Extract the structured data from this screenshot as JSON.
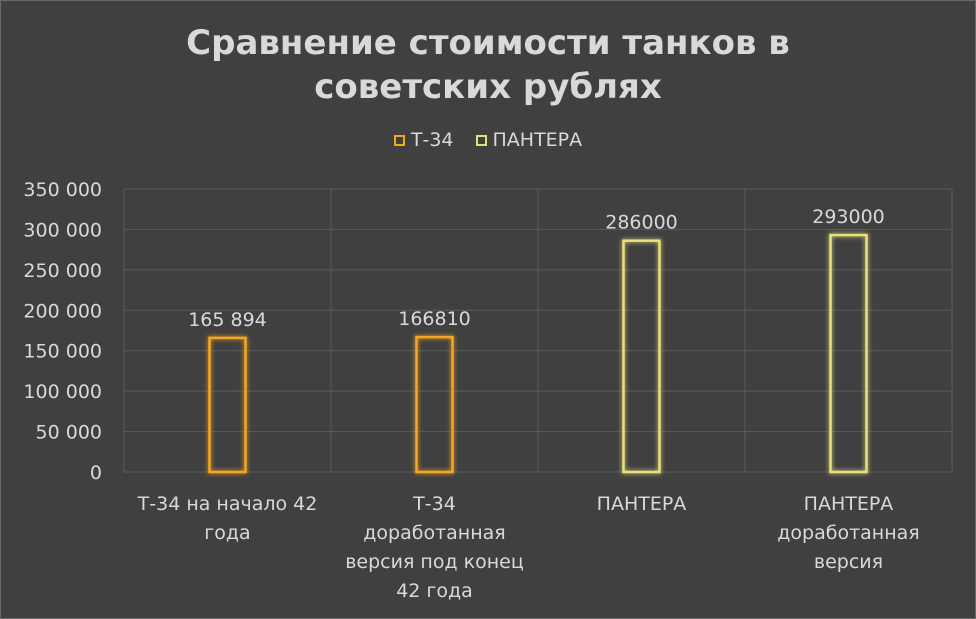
{
  "chart_data": {
    "type": "bar",
    "title_lines": [
      "Сравнение стоимости танков в",
      "советских рублях"
    ],
    "categories": [
      [
        "Т-34 на начало 42",
        "года"
      ],
      [
        "Т-34",
        "доработанная",
        "версия под конец",
        "42 года"
      ],
      [
        "ПАНТЕРА"
      ],
      [
        "ПАНТЕРА",
        "доработанная",
        "версия"
      ]
    ],
    "series": [
      {
        "name": "Т-34",
        "color": "#f5a623",
        "values": [
          165894,
          166810,
          null,
          null
        ],
        "labels": [
          "165 894",
          "166810",
          null,
          null
        ]
      },
      {
        "name": "ПАНТЕРА",
        "color": "#e8e07a",
        "values": [
          null,
          null,
          286000,
          293000
        ],
        "labels": [
          null,
          null,
          "286000",
          "293000"
        ]
      }
    ],
    "ylim": [
      0,
      350000
    ],
    "yticks": [
      {
        "value": 0,
        "label": "0"
      },
      {
        "value": 50000,
        "label": "50 000"
      },
      {
        "value": 100000,
        "label": "100 000"
      },
      {
        "value": 150000,
        "label": "150 000"
      },
      {
        "value": 200000,
        "label": "200 000"
      },
      {
        "value": 250000,
        "label": "250 000"
      },
      {
        "value": 300000,
        "label": "300 000"
      },
      {
        "value": 350000,
        "label": "350 000"
      }
    ],
    "legend_position": "top",
    "grid": true
  }
}
